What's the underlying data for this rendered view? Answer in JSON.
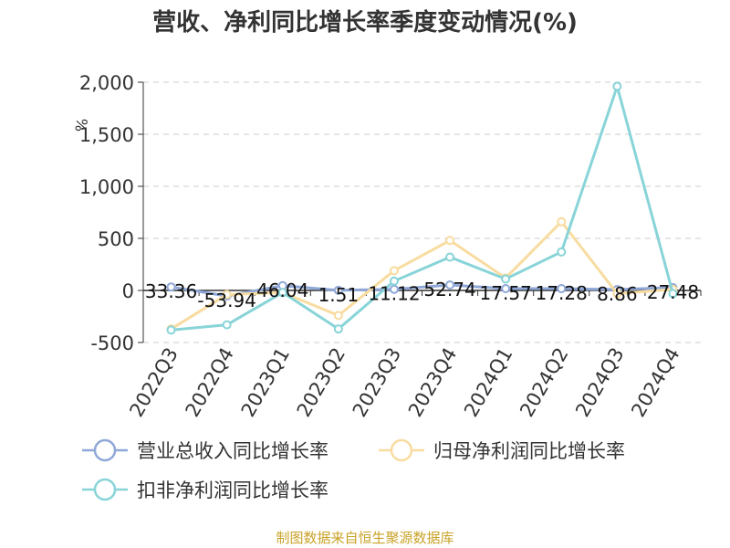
{
  "title": "营收、净利同比增长率季度变动情况(%)",
  "source": "制图数据来自恒生聚源数据库",
  "chart_data": {
    "type": "line",
    "title": "营收、净利同比增长率季度变动情况(%)",
    "ylabel": "%",
    "xlabel": "",
    "ylim": [
      -500,
      2000
    ],
    "yticks": [
      -500,
      0,
      500,
      1000,
      1500,
      2000
    ],
    "ytick_labels": [
      "-500",
      "0",
      "500",
      "1,000",
      "1,500",
      "2,000"
    ],
    "grid": true,
    "legend_position": "bottom",
    "categories": [
      "2022Q3",
      "2022Q4",
      "2023Q1",
      "2023Q2",
      "2023Q3",
      "2023Q4",
      "2024Q1",
      "2024Q2",
      "2024Q3",
      "2024Q4"
    ],
    "series": [
      {
        "name": "营业总收入同比增长率",
        "color": "#8fa8d8",
        "values": [
          33.36,
          -53.94,
          46.04,
          1.51,
          11.12,
          52.74,
          17.57,
          17.28,
          8.86,
          27.48
        ],
        "labels": [
          "33.36",
          "-53.94",
          "46.04",
          "1.51",
          "11.12",
          "52.74",
          "17.57",
          "17.28",
          "8.86",
          "27.48"
        ]
      },
      {
        "name": "归母净利润同比增长率",
        "color": "#f8dca0",
        "values": [
          -370,
          -40,
          -20,
          -240,
          190,
          480,
          120,
          660,
          -30,
          10
        ]
      },
      {
        "name": "扣非净利润同比增长率",
        "color": "#88d4d8",
        "values": [
          -380,
          -330,
          -20,
          -370,
          90,
          320,
          110,
          370,
          1960,
          -30
        ]
      }
    ]
  }
}
